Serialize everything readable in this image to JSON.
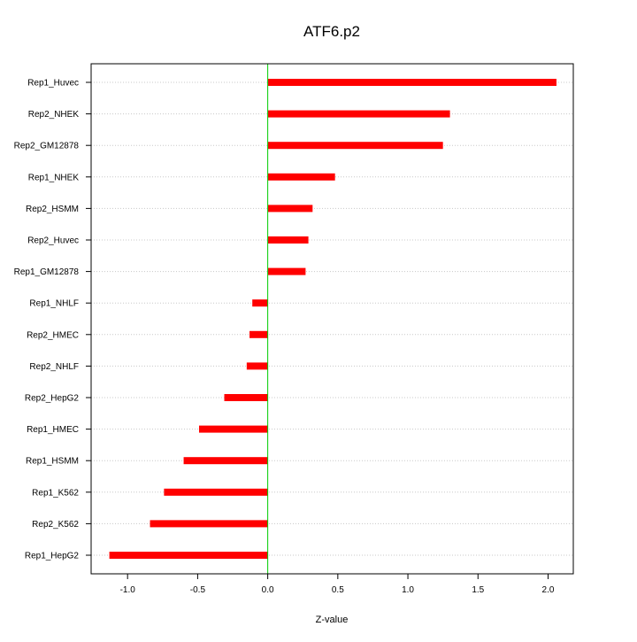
{
  "chart_data": {
    "type": "bar",
    "orientation": "horizontal",
    "title": "ATF6.p2",
    "xlabel": "Z-value",
    "ylabel": "",
    "xlim": [
      -1.26,
      2.18
    ],
    "x_ticks": [
      -1.0,
      -0.5,
      0.0,
      0.5,
      1.0,
      1.5,
      2.0
    ],
    "x_tick_labels": [
      "-1.0",
      "-0.5",
      "0.0",
      "0.5",
      "1.0",
      "1.5",
      "2.0"
    ],
    "grid": "horizontal dotted",
    "categories": [
      "Rep1_Huvec",
      "Rep2_NHEK",
      "Rep2_GM12878",
      "Rep1_NHEK",
      "Rep2_HSMM",
      "Rep2_Huvec",
      "Rep1_GM12878",
      "Rep1_NHLF",
      "Rep2_HMEC",
      "Rep2_NHLF",
      "Rep2_HepG2",
      "Rep1_HMEC",
      "Rep1_HSMM",
      "Rep1_K562",
      "Rep2_K562",
      "Rep1_HepG2"
    ],
    "values": [
      2.06,
      1.3,
      1.25,
      0.48,
      0.32,
      0.29,
      0.27,
      -0.11,
      -0.13,
      -0.15,
      -0.31,
      -0.49,
      -0.6,
      -0.74,
      -0.84,
      -1.13
    ],
    "bar_color": "#ff0000",
    "zero_line_color": "#00cc00"
  }
}
